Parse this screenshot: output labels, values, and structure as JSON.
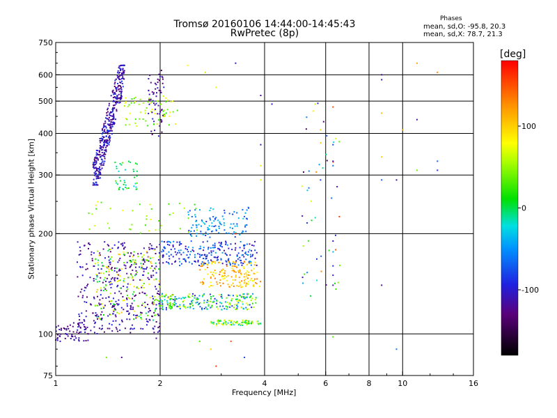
{
  "title": {
    "line1": "Tromsø 20160106 14:44:00-14:45:43",
    "line2": "RwPretec (8p)"
  },
  "stats": {
    "header": "Phases",
    "o_line": "mean, sd,O: -95.8, 20.3",
    "x_line": "mean, sd,X:  78.7, 21.3"
  },
  "colorbar": {
    "label": "[deg]",
    "ticks": [
      "100",
      "0",
      "-100"
    ],
    "tick_values": [
      100,
      0,
      -100
    ],
    "range": [
      -180,
      180
    ]
  },
  "chart_data": {
    "type": "scatter",
    "title": "Tromsø 20160106 14:44:00-14:45:43",
    "subtitle": "RwPretec (8p)",
    "xlabel": "Frequency [MHz]",
    "ylabel": "Stationary phase Virtual Height [km]",
    "x_scale": "log",
    "y_scale": "log",
    "xlim": [
      1,
      16
    ],
    "ylim": [
      75,
      750
    ],
    "x_ticks": [
      1,
      2,
      4,
      6,
      8,
      10,
      16
    ],
    "x_tick_labels": [
      "1",
      "2",
      "4",
      "6",
      "8",
      "10",
      "16"
    ],
    "x_gridlines": [
      2,
      4,
      6,
      8,
      10
    ],
    "y_ticks": [
      75,
      100,
      200,
      300,
      400,
      500,
      600,
      750
    ],
    "y_tick_labels": [
      "75",
      "100",
      "200",
      "300",
      "400",
      "500",
      "600",
      "750"
    ],
    "y_gridlines": [
      100,
      200,
      300,
      400,
      500,
      600
    ],
    "grid": true,
    "color_quantity": "phase [deg]",
    "color_range": [
      -180,
      180
    ],
    "clusters": [
      {
        "x": [
          1.28,
          1.58
        ],
        "y": [
          280,
          640
        ],
        "phase": [
          -140,
          -80
        ],
        "count": 420
      },
      {
        "x": [
          1.48,
          1.72
        ],
        "y": [
          270,
          330
        ],
        "phase": [
          -30,
          40
        ],
        "count": 40
      },
      {
        "x": [
          1.55,
          2.25
        ],
        "y": [
          420,
          520
        ],
        "phase": [
          20,
          90
        ],
        "count": 70
      },
      {
        "x": [
          1.85,
          2.05
        ],
        "y": [
          390,
          620
        ],
        "phase": [
          -140,
          -90
        ],
        "count": 60
      },
      {
        "x": [
          1.0,
          1.25
        ],
        "y": [
          95,
          108
        ],
        "phase": [
          -140,
          -100
        ],
        "count": 60
      },
      {
        "x": [
          1.15,
          2.0
        ],
        "y": [
          100,
          190
        ],
        "phase": [
          -140,
          -90
        ],
        "count": 380
      },
      {
        "x": [
          1.3,
          2.0
        ],
        "y": [
          110,
          180
        ],
        "phase": [
          -10,
          110
        ],
        "count": 170
      },
      {
        "x": [
          2.0,
          3.8
        ],
        "y": [
          118,
          132
        ],
        "phase": [
          -100,
          80
        ],
        "count": 230
      },
      {
        "x": [
          2.0,
          3.8
        ],
        "y": [
          160,
          190
        ],
        "phase": [
          -120,
          -40
        ],
        "count": 230
      },
      {
        "x": [
          2.6,
          3.9
        ],
        "y": [
          138,
          165
        ],
        "phase": [
          70,
          140
        ],
        "count": 150
      },
      {
        "x": [
          2.4,
          3.6
        ],
        "y": [
          195,
          240
        ],
        "phase": [
          -90,
          -20
        ],
        "count": 110
      },
      {
        "x": [
          2.8,
          3.9
        ],
        "y": [
          106,
          110
        ],
        "phase": [
          -30,
          90
        ],
        "count": 80
      },
      {
        "x": [
          5.0,
          6.6
        ],
        "y": [
          130,
          500
        ],
        "phase": [
          -150,
          160
        ],
        "count": 50
      },
      {
        "x": [
          1.2,
          2.6
        ],
        "y": [
          200,
          250
        ],
        "phase": [
          20,
          80
        ],
        "count": 40
      }
    ],
    "sparse_points": [
      {
        "x": 3.3,
        "y": 650,
        "phase": -110
      },
      {
        "x": 8.7,
        "y": 600,
        "phase": -120
      },
      {
        "x": 8.7,
        "y": 580,
        "phase": -110
      },
      {
        "x": 11.0,
        "y": 650,
        "phase": 120
      },
      {
        "x": 12.6,
        "y": 610,
        "phase": 130
      },
      {
        "x": 11.0,
        "y": 440,
        "phase": -115
      },
      {
        "x": 12.6,
        "y": 330,
        "phase": -70
      },
      {
        "x": 12.6,
        "y": 310,
        "phase": -90
      },
      {
        "x": 11.0,
        "y": 310,
        "phase": 40
      },
      {
        "x": 9.6,
        "y": 290,
        "phase": -115
      },
      {
        "x": 8.7,
        "y": 290,
        "phase": -70
      },
      {
        "x": 8.7,
        "y": 340,
        "phase": 100
      },
      {
        "x": 8.7,
        "y": 460,
        "phase": 110
      },
      {
        "x": 10.0,
        "y": 410,
        "phase": 110
      },
      {
        "x": 8.7,
        "y": 140,
        "phase": -120
      },
      {
        "x": 9.6,
        "y": 90,
        "phase": -60
      },
      {
        "x": 6.3,
        "y": 370,
        "phase": -80
      },
      {
        "x": 6.3,
        "y": 330,
        "phase": -110
      },
      {
        "x": 6.3,
        "y": 320,
        "phase": -60
      },
      {
        "x": 6.3,
        "y": 480,
        "phase": 150
      },
      {
        "x": 6.3,
        "y": 190,
        "phase": -110
      },
      {
        "x": 6.3,
        "y": 160,
        "phase": -90
      },
      {
        "x": 6.3,
        "y": 150,
        "phase": -100
      },
      {
        "x": 6.3,
        "y": 140,
        "phase": -110
      },
      {
        "x": 6.3,
        "y": 98,
        "phase": 30
      },
      {
        "x": 5.8,
        "y": 410,
        "phase": 100
      },
      {
        "x": 5.8,
        "y": 290,
        "phase": -80
      },
      {
        "x": 3.9,
        "y": 370,
        "phase": -110
      },
      {
        "x": 3.9,
        "y": 520,
        "phase": -120
      },
      {
        "x": 4.2,
        "y": 490,
        "phase": -100
      },
      {
        "x": 3.9,
        "y": 320,
        "phase": 90
      },
      {
        "x": 3.9,
        "y": 290,
        "phase": 70
      },
      {
        "x": 2.8,
        "y": 90,
        "phase": 100
      },
      {
        "x": 3.2,
        "y": 95,
        "phase": 150
      },
      {
        "x": 3.5,
        "y": 85,
        "phase": -80
      },
      {
        "x": 2.6,
        "y": 95,
        "phase": 30
      },
      {
        "x": 1.95,
        "y": 97,
        "phase": -120
      },
      {
        "x": 1.55,
        "y": 85,
        "phase": -120
      },
      {
        "x": 1.4,
        "y": 85,
        "phase": 40
      },
      {
        "x": 2.9,
        "y": 80,
        "phase": 160
      },
      {
        "x": 3.3,
        "y": 200,
        "phase": 170
      },
      {
        "x": 2.9,
        "y": 550,
        "phase": 70
      },
      {
        "x": 2.4,
        "y": 640,
        "phase": 80
      },
      {
        "x": 2.7,
        "y": 610,
        "phase": 60
      }
    ]
  }
}
